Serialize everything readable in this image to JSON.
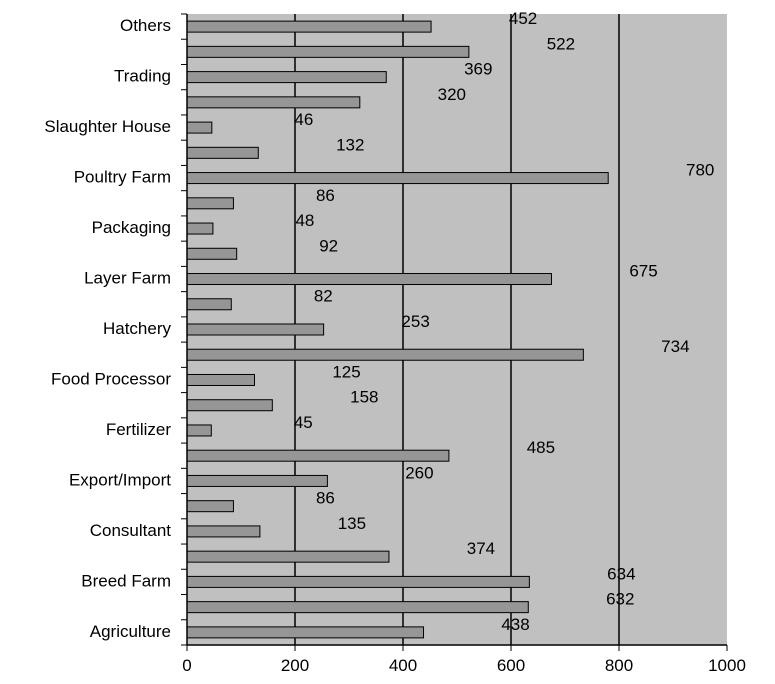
{
  "chart_data": {
    "type": "bar",
    "orientation": "horizontal",
    "title": "",
    "xlabel": "",
    "ylabel": "",
    "xlim": [
      0,
      1000
    ],
    "x_ticks": [
      0,
      200,
      400,
      600,
      800,
      1000
    ],
    "grid": "vertical gridlines at 200, 400, 600, 800",
    "legend": "none",
    "categories_bottom_to_top": [
      "Agriculture",
      "",
      "Breed Farm",
      "",
      "Consultant",
      "",
      "Export/Import",
      "",
      "Fertilizer",
      "",
      "Food Processor",
      "",
      "Hatchery",
      "",
      "Layer Farm",
      "",
      "Packaging",
      "",
      "Poultry Farm",
      "",
      "Slaughter House",
      "",
      "Trading",
      "",
      "Others"
    ],
    "values_bottom_to_top": [
      438,
      632,
      634,
      374,
      135,
      86,
      260,
      485,
      45,
      158,
      125,
      734,
      253,
      82,
      675,
      92,
      48,
      86,
      780,
      132,
      46,
      320,
      369,
      522,
      452
    ],
    "colors": {
      "plot_background": "#c0c0c0",
      "bar_fill": "#969696",
      "bar_stroke": "#000000",
      "gridline": "#000000"
    }
  }
}
